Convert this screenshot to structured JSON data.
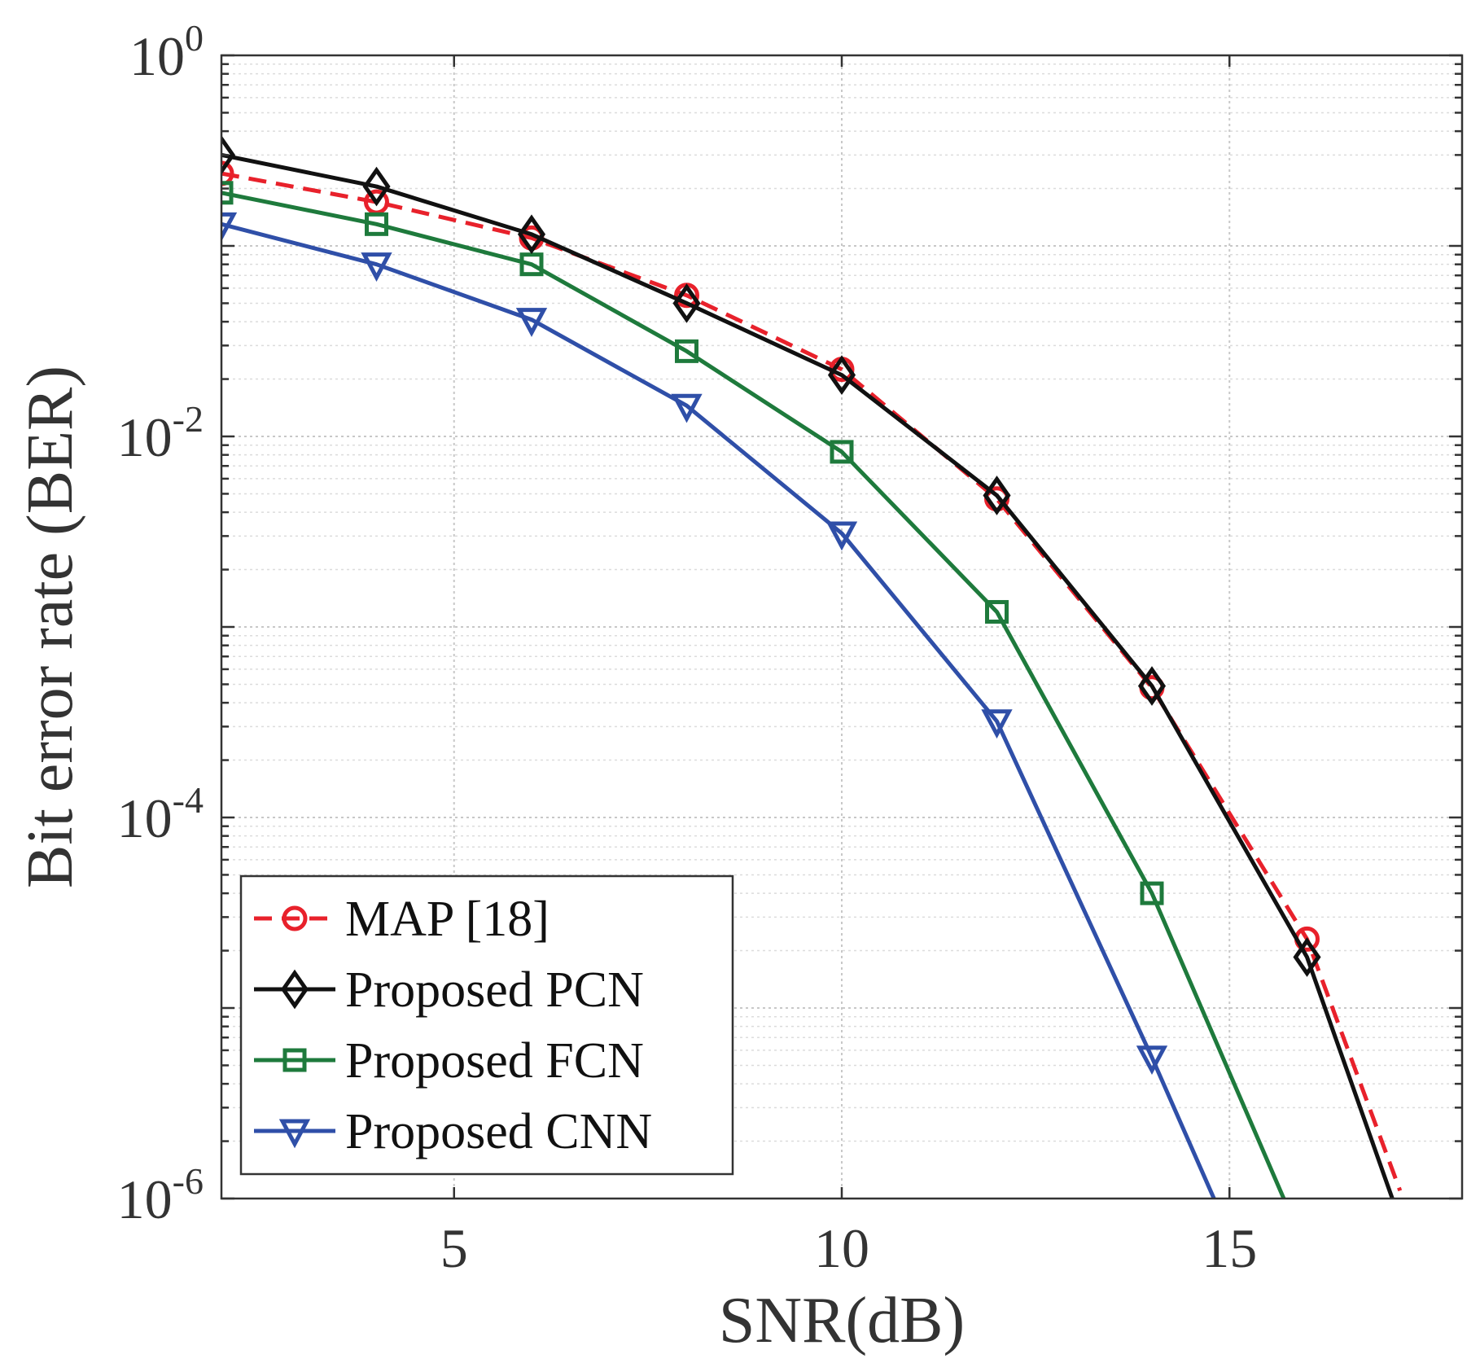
{
  "chart_data": {
    "type": "line",
    "title": "",
    "xlabel": "SNR(dB)",
    "ylabel": "Bit error rate (BER)",
    "xlim": [
      2,
      18
    ],
    "ylim": [
      1e-06,
      1
    ],
    "yscale": "log",
    "grid": true,
    "x_ticks": [
      5,
      10,
      15
    ],
    "x_tick_labels": [
      "5",
      "10",
      "15"
    ],
    "y_ticks": [
      {
        "value": 1,
        "base": "10",
        "exp": "0"
      },
      {
        "value": 0.01,
        "base": "10",
        "exp": "-2"
      },
      {
        "value": 0.0001,
        "base": "10",
        "exp": "-4"
      },
      {
        "value": 1e-06,
        "base": "10",
        "exp": "-6"
      }
    ],
    "legend_position": "bottom-left",
    "series": [
      {
        "name": "MAP [18]",
        "color": "#e8212b",
        "dash": "dashed",
        "marker": "circle",
        "x": [
          2,
          4,
          6,
          8,
          10,
          12,
          14,
          16,
          17.2
        ],
        "y": [
          0.24,
          0.17,
          0.11,
          0.055,
          0.0225,
          0.0047,
          0.00048,
          2.3e-05,
          1.1e-06
        ]
      },
      {
        "name": "Proposed PCN",
        "color": "#111111",
        "dash": "solid",
        "marker": "diamond",
        "x": [
          2,
          4,
          6,
          8,
          10,
          12,
          14,
          16,
          17.1
        ],
        "y": [
          0.3,
          0.205,
          0.115,
          0.05,
          0.021,
          0.0049,
          0.00049,
          1.85e-05,
          1e-06
        ]
      },
      {
        "name": "Proposed FCN",
        "color": "#1e7a3c",
        "dash": "solid",
        "marker": "square",
        "x": [
          2,
          4,
          6,
          8,
          10,
          12,
          14,
          15.7
        ],
        "y": [
          0.19,
          0.13,
          0.08,
          0.028,
          0.0083,
          0.0012,
          4e-05,
          1e-06
        ]
      },
      {
        "name": "Proposed CNN",
        "color": "#2f4fa8",
        "dash": "solid",
        "marker": "triangle-down",
        "x": [
          2,
          4,
          6,
          8,
          10,
          12,
          14,
          14.8
        ],
        "y": [
          0.13,
          0.08,
          0.041,
          0.0145,
          0.0031,
          0.00032,
          5.5e-06,
          1e-06
        ]
      }
    ]
  }
}
